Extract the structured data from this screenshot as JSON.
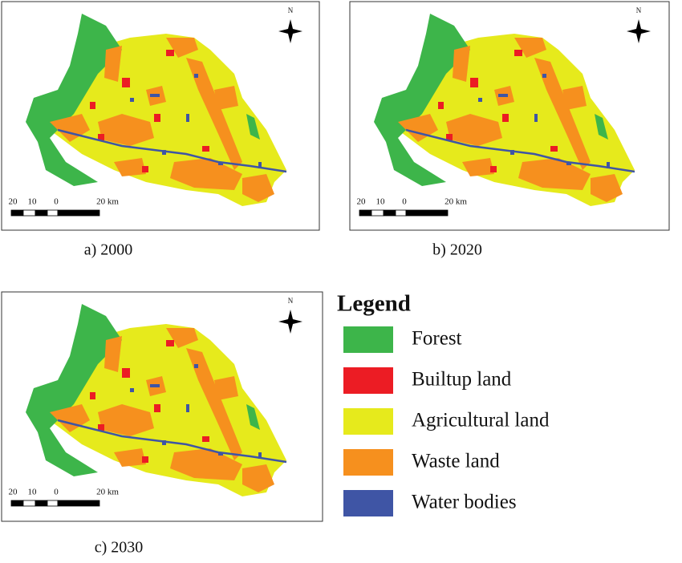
{
  "panels": [
    {
      "caption": "a) 2000",
      "north": "N",
      "scale_labels": [
        "20",
        "10",
        "0",
        "20 km"
      ]
    },
    {
      "caption": "b) 2020",
      "north": "N",
      "scale_labels": [
        "20",
        "10",
        "0",
        "20 km"
      ]
    },
    {
      "caption": "c) 2030",
      "north": "N",
      "scale_labels": [
        "20",
        "10",
        "0",
        "20 km"
      ]
    }
  ],
  "legend": {
    "title": "Legend",
    "items": [
      {
        "label": "Forest",
        "color": "#3db54a"
      },
      {
        "label": "Builtup land",
        "color": "#ec1c24"
      },
      {
        "label": "Agricultural land",
        "color": "#e6ea1c"
      },
      {
        "label": "Waste land",
        "color": "#f6901e"
      },
      {
        "label": "Water bodies",
        "color": "#3f55a5"
      }
    ]
  }
}
